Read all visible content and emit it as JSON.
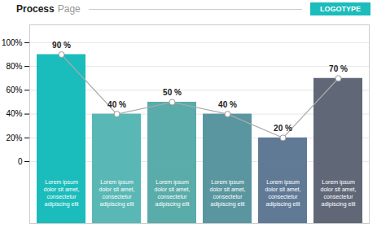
{
  "chart_data": {
    "type": "bar",
    "title": "Process",
    "subtitle": "Page",
    "annotations": [
      "LOGOTYPE"
    ],
    "categories": [
      "Lorem ipsum\ndolor sit amet,\nconsectetur\nadipiscing elit",
      "Lorem ipsum\ndolor sit amet,\nconsectetur\nadipiscing elit",
      "Lorem ipsum\ndolor sit amet,\nconsectetur\nadipiscing elit",
      "Lorem ipsum\ndolor sit amet,\nconsectetur\nadipiscing elit",
      "Lorem ipsum\ndolor sit amet,\nconsectetur\nadipiscing elit",
      "Lorem ipsum\ndolor sit amet,\nconsectetur\nadipiscing elit"
    ],
    "values": [
      90,
      40,
      50,
      40,
      20,
      70
    ],
    "value_labels": [
      "90 %",
      "40 %",
      "50 %",
      "40 %",
      "20 %",
      "70 %"
    ],
    "data_labels": true,
    "colors": [
      "#1bbcbc",
      "#59b8b5",
      "#5aacaa",
      "#5a96a0",
      "#607a96",
      "#606878"
    ],
    "ylim": [
      -52,
      115
    ],
    "yticks": [
      0,
      {
        "value": 20,
        "label": "20%"
      },
      {
        "value": 40,
        "label": "40%"
      },
      {
        "value": 60,
        "label": "60%"
      },
      {
        "value": 80,
        "label": "80%"
      },
      {
        "value": 100,
        "label": "100%"
      }
    ],
    "grid": true
  }
}
